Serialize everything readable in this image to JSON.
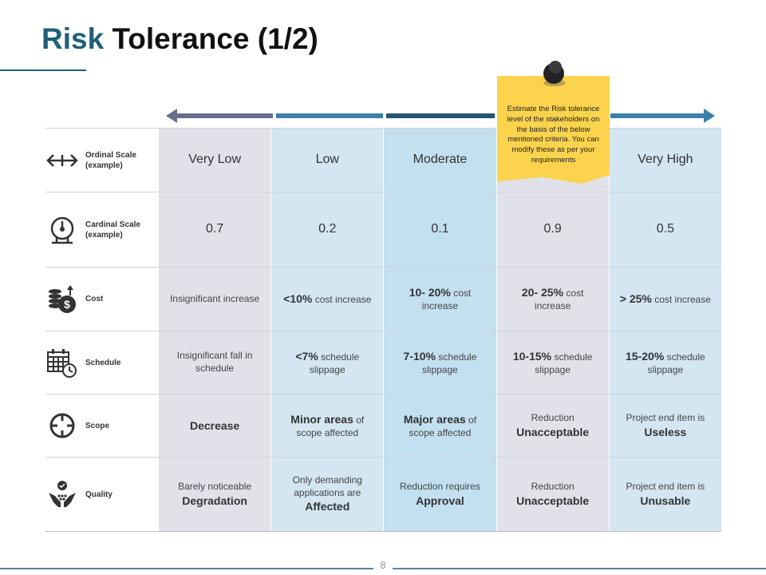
{
  "title": {
    "accent": "Risk",
    "rest": "Tolerance (1/2)"
  },
  "note": "Estimate the Risk tolerance level of the stakeholders on the basis of the below mentioned criteria. You can modify these as per your requirements",
  "rows": [
    {
      "label": "Ordinal Scale (example)",
      "kind": "scale",
      "cells": [
        [
          {
            "text": "Very Low"
          }
        ],
        [
          {
            "text": "Low"
          }
        ],
        [
          {
            "text": "Moderate"
          }
        ],
        null,
        [
          {
            "text": "Very High"
          }
        ]
      ]
    },
    {
      "label": "Cardinal Scale (example)",
      "kind": "scale",
      "cells": [
        0.7,
        0.2,
        0.1,
        0.9,
        0.5
      ]
    },
    {
      "label": "Cost",
      "kind": "criteria",
      "cells": [
        [
          {
            "text": "Insignificant increase"
          }
        ],
        [
          {
            "text": "<10%",
            "bold": true
          },
          {
            "text": "cost increase"
          }
        ],
        [
          {
            "text": "10- 20%",
            "bold": true
          },
          {
            "text": "cost increase"
          }
        ],
        [
          {
            "text": "20- 25%",
            "bold": true
          },
          {
            "text": "cost increase"
          }
        ],
        [
          {
            "text": "> 25%",
            "bold": true
          },
          {
            "text": "cost increase"
          }
        ]
      ]
    },
    {
      "label": "Schedule",
      "kind": "criteria",
      "cells": [
        [
          {
            "text": "Insignificant fall in schedule"
          }
        ],
        [
          {
            "text": "<7%",
            "bold": true
          },
          {
            "text": "schedule slippage"
          }
        ],
        [
          {
            "text": "7-10%",
            "bold": true
          },
          {
            "text": "schedule slippage"
          }
        ],
        [
          {
            "text": "10-15%",
            "bold": true
          },
          {
            "text": "schedule slippage"
          }
        ],
        [
          {
            "text": "15-20%",
            "bold": true
          },
          {
            "text": "schedule slippage"
          }
        ]
      ]
    },
    {
      "label": "Scope",
      "kind": "criteria",
      "cells": [
        [
          {
            "text": "Decrease",
            "bold": true
          }
        ],
        [
          {
            "text": "Minor areas",
            "bold": true
          },
          {
            "text": "of scope affected"
          }
        ],
        [
          {
            "text": "Major areas",
            "bold": true
          },
          {
            "text": "of scope affected"
          }
        ],
        [
          {
            "text": "Reduction"
          },
          {
            "text": "Unacceptable",
            "bold": true
          }
        ],
        [
          {
            "text": "Project end item is"
          },
          {
            "text": "Useless",
            "bold": true
          }
        ]
      ]
    },
    {
      "label": "Quality",
      "kind": "criteria",
      "cells": [
        [
          {
            "text": "Barely noticeable"
          },
          {
            "text": "Degradation",
            "bold": true
          }
        ],
        [
          {
            "text": "Only demanding applications are"
          },
          {
            "text": "Affected",
            "bold": true
          }
        ],
        [
          {
            "text": "Reduction requires"
          },
          {
            "text": "Approval",
            "bold": true
          }
        ],
        [
          {
            "text": "Reduction"
          },
          {
            "text": "Unacceptable",
            "bold": true
          }
        ],
        [
          {
            "text": "Project end item is"
          },
          {
            "text": "Unusable",
            "bold": true
          }
        ]
      ]
    }
  ],
  "page_number": "8"
}
